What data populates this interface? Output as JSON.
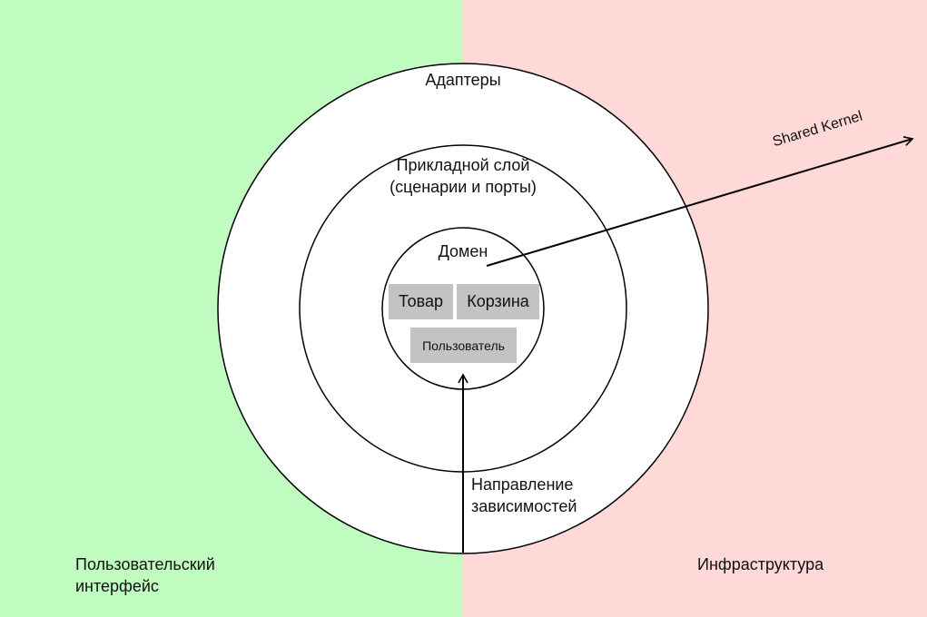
{
  "colors": {
    "left_bg": "#c0fcc0",
    "right_bg": "#ffd8d8",
    "circle_fill": "#ffffff",
    "stroke": "#000000",
    "box_fill": "#c3c3c3"
  },
  "regions": {
    "left_label": "Пользовательский\nинтерфейс",
    "right_label": "Инфраструктура"
  },
  "rings": {
    "outer_label": "Адаптеры",
    "middle_label_line1": "Прикладной слой",
    "middle_label_line2": "(сценарии и порты)",
    "inner_label": "Домен"
  },
  "entities": {
    "product": "Товар",
    "cart": "Корзина",
    "user": "Пользователь"
  },
  "arrows": {
    "shared_kernel": "Shared Kernel",
    "dependency_line1": "Направление",
    "dependency_line2": "зависимостей"
  }
}
